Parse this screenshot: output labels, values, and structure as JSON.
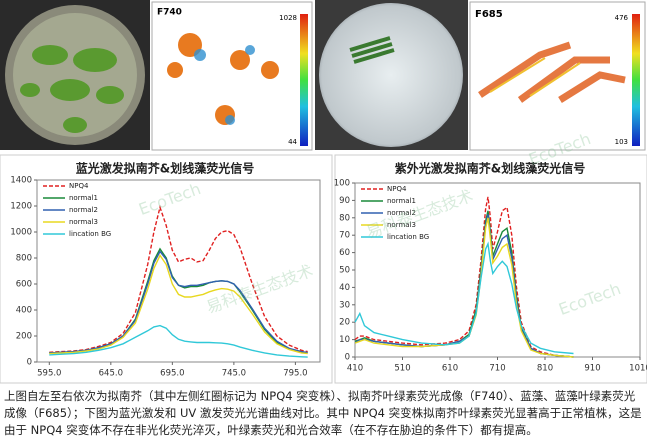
{
  "panels": {
    "f740": {
      "label": "F740",
      "colorbar_max": 1028,
      "colorbar_min": 44
    },
    "f685": {
      "label": "F685",
      "colorbar_max": 476,
      "colorbar_min": 103
    }
  },
  "watermark": [
    "EcoTech",
    "易科泰生态技术"
  ],
  "chart_data": [
    {
      "type": "line",
      "title": "蓝光激发拟南芥&划线藻荧光信号",
      "x": [
        595,
        605,
        615,
        625,
        635,
        645,
        655,
        665,
        675,
        680,
        685,
        690,
        695,
        700,
        705,
        710,
        715,
        720,
        725,
        730,
        735,
        740,
        745,
        750,
        760,
        770,
        780,
        790,
        800,
        805
      ],
      "series": [
        {
          "name": "NPQ4",
          "color": "#e02020",
          "line_style": "dashed",
          "values": [
            75,
            80,
            85,
            95,
            120,
            150,
            220,
            380,
            750,
            1000,
            1190,
            1050,
            860,
            770,
            790,
            800,
            770,
            780,
            860,
            950,
            1000,
            1010,
            980,
            880,
            600,
            350,
            200,
            130,
            90,
            80
          ]
        },
        {
          "name": "normal1",
          "color": "#1a8a3a",
          "values": [
            70,
            75,
            80,
            90,
            110,
            140,
            200,
            330,
            620,
            780,
            870,
            800,
            660,
            590,
            570,
            580,
            580,
            590,
            610,
            620,
            625,
            620,
            600,
            540,
            400,
            250,
            150,
            100,
            75,
            70
          ]
        },
        {
          "name": "normal2",
          "color": "#3060b0",
          "values": [
            70,
            75,
            80,
            90,
            110,
            140,
            200,
            320,
            600,
            760,
            850,
            790,
            650,
            590,
            580,
            590,
            590,
            600,
            610,
            620,
            625,
            620,
            600,
            550,
            410,
            260,
            160,
            105,
            80,
            72
          ]
        },
        {
          "name": "normal3",
          "color": "#e8d820",
          "values": [
            65,
            70,
            75,
            85,
            100,
            130,
            190,
            300,
            560,
            720,
            820,
            750,
            600,
            520,
            500,
            500,
            510,
            520,
            540,
            555,
            565,
            560,
            545,
            500,
            370,
            230,
            140,
            95,
            70,
            65
          ]
        },
        {
          "name": "lincation BG",
          "color": "#30c8d8",
          "values": [
            55,
            60,
            65,
            75,
            90,
            110,
            140,
            190,
            240,
            270,
            280,
            260,
            210,
            175,
            160,
            155,
            150,
            150,
            150,
            148,
            145,
            140,
            130,
            115,
            90,
            70,
            55,
            45,
            40,
            38
          ]
        }
      ],
      "xlim": [
        585,
        815
      ],
      "xticks": [
        {
          "value": 595,
          "label": "595.0"
        },
        {
          "value": 645,
          "label": "645.0"
        },
        {
          "value": 695,
          "label": "695.0"
        },
        {
          "value": 745,
          "label": "745.0"
        },
        {
          "value": 795,
          "label": "795.0"
        }
      ],
      "ylim": [
        0,
        1400
      ],
      "yticks": [
        0,
        200,
        400,
        600,
        800,
        1000,
        1200,
        1400
      ],
      "grid": false,
      "legend": "top-left"
    },
    {
      "type": "line",
      "title": "紫外光激发拟南芥&划线藻荧光信号",
      "x": [
        410,
        420,
        430,
        450,
        480,
        510,
        550,
        600,
        630,
        650,
        665,
        675,
        685,
        690,
        695,
        700,
        710,
        720,
        730,
        740,
        750,
        760,
        780,
        800,
        830,
        870
      ],
      "series": [
        {
          "name": "NPQ4",
          "color": "#e02020",
          "line_style": "dashed",
          "values": [
            10,
            12,
            12,
            10,
            9,
            8,
            7,
            8,
            10,
            15,
            30,
            55,
            85,
            92,
            80,
            62,
            72,
            84,
            86,
            70,
            40,
            20,
            6,
            3,
            1,
            0
          ]
        },
        {
          "name": "normal1",
          "color": "#1a8a3a",
          "values": [
            9,
            10,
            11,
            9,
            8,
            7,
            6,
            7,
            9,
            13,
            27,
            50,
            78,
            84,
            72,
            58,
            65,
            72,
            74,
            60,
            35,
            17,
            5,
            2,
            1,
            0
          ]
        },
        {
          "name": "normal2",
          "color": "#3060b0",
          "values": [
            8,
            10,
            10,
            9,
            8,
            7,
            6,
            7,
            9,
            12,
            25,
            48,
            76,
            82,
            70,
            56,
            62,
            68,
            70,
            57,
            33,
            16,
            5,
            2,
            1,
            0
          ]
        },
        {
          "name": "normal3",
          "color": "#e8d820",
          "values": [
            8,
            9,
            10,
            8,
            7,
            6,
            6,
            7,
            8,
            12,
            24,
            46,
            74,
            80,
            68,
            54,
            58,
            63,
            65,
            53,
            30,
            15,
            4,
            2,
            1,
            0
          ]
        },
        {
          "name": "lincation BG",
          "color": "#30c8d8",
          "values": [
            20,
            25,
            18,
            14,
            12,
            10,
            8,
            7,
            8,
            12,
            25,
            45,
            62,
            65,
            55,
            48,
            52,
            55,
            52,
            42,
            28,
            18,
            8,
            5,
            3,
            2
          ]
        }
      ],
      "xlim": [
        410,
        1010
      ],
      "xticks": [
        410,
        510,
        610,
        710,
        810,
        910,
        1010
      ],
      "ylim": [
        0,
        100
      ],
      "yticks": [
        0,
        10,
        20,
        30,
        40,
        50,
        60,
        70,
        80,
        90,
        100
      ],
      "grid": false,
      "legend": "top-left"
    }
  ],
  "caption": "上图自左至右依次为拟南芥（其中左侧红圈标记为 NPQ4 突变株）、拟南芥叶绿素荧光成像（F740）、蓝藻、蓝藻叶绿素荧光成像（F685）；下图为蓝光激发和 UV 激发荧光光谱曲线对比。其中 NPQ4 突变株拟南芥叶绿素荧光显著高于正常植株，这是由于 NPQ4 突变体不存在非光化荧光淬灭，叶绿素荧光和光合效率（在不存在胁迫的条件下）都有提高。"
}
